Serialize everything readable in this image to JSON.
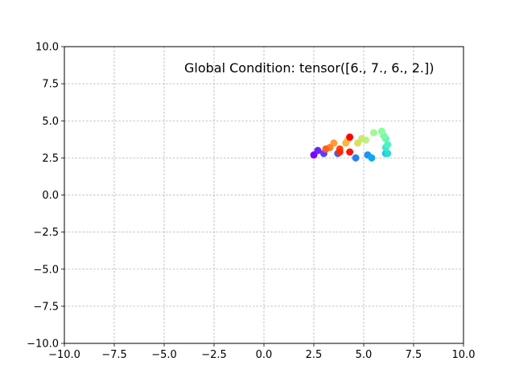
{
  "chart_data": {
    "type": "scatter",
    "title": "",
    "xlabel": "",
    "ylabel": "",
    "xlim": [
      -10,
      10
    ],
    "ylim": [
      -10,
      10
    ],
    "grid": true,
    "x_ticks": [
      "−10.0",
      "−7.5",
      "−5.0",
      "−2.5",
      "0.0",
      "2.5",
      "5.0",
      "7.5",
      "10.0"
    ],
    "y_ticks": [
      "−10.0",
      "−7.5",
      "−5.0",
      "−2.5",
      "0.0",
      "2.5",
      "5.0",
      "7.5",
      "10.0"
    ],
    "annotation": "Global Condition: tensor([6., 7., 6., 2.])",
    "colormap": "rainbow",
    "points": [
      {
        "x": 2.5,
        "y": 2.7,
        "color": "#7f00ff"
      },
      {
        "x": 2.7,
        "y": 3.0,
        "color": "#6a22fe"
      },
      {
        "x": 3.0,
        "y": 2.8,
        "color": "#5641fd"
      },
      {
        "x": 3.7,
        "y": 2.8,
        "color": "#3f5ffa"
      },
      {
        "x": 4.6,
        "y": 2.5,
        "color": "#2a7ef5"
      },
      {
        "x": 5.2,
        "y": 2.7,
        "color": "#1996f3"
      },
      {
        "x": 5.4,
        "y": 2.5,
        "color": "#0ca9ee"
      },
      {
        "x": 6.1,
        "y": 2.8,
        "color": "#1cc6e2"
      },
      {
        "x": 6.2,
        "y": 2.8,
        "color": "#2cdcd8"
      },
      {
        "x": 6.1,
        "y": 3.2,
        "color": "#3ee8cd"
      },
      {
        "x": 6.2,
        "y": 3.4,
        "color": "#50f3c2"
      },
      {
        "x": 6.1,
        "y": 3.8,
        "color": "#62f8b6"
      },
      {
        "x": 6.0,
        "y": 4.0,
        "color": "#76fca9"
      },
      {
        "x": 5.9,
        "y": 4.3,
        "color": "#8afe9c"
      },
      {
        "x": 5.5,
        "y": 4.2,
        "color": "#a0fb8e"
      },
      {
        "x": 5.1,
        "y": 3.7,
        "color": "#b4f580"
      },
      {
        "x": 4.9,
        "y": 3.8,
        "color": "#c8ea72"
      },
      {
        "x": 4.7,
        "y": 3.5,
        "color": "#dade63"
      },
      {
        "x": 4.2,
        "y": 3.7,
        "color": "#eacd55"
      },
      {
        "x": 4.1,
        "y": 3.5,
        "color": "#f8b846"
      },
      {
        "x": 3.5,
        "y": 3.5,
        "color": "#ff9c38"
      },
      {
        "x": 3.3,
        "y": 3.2,
        "color": "#ff8029"
      },
      {
        "x": 3.1,
        "y": 3.1,
        "color": "#ff611b"
      },
      {
        "x": 3.8,
        "y": 3.1,
        "color": "#ff420d"
      },
      {
        "x": 3.8,
        "y": 2.9,
        "color": "#ff2a06"
      },
      {
        "x": 4.3,
        "y": 2.9,
        "color": "#ff1403"
      },
      {
        "x": 4.3,
        "y": 3.9,
        "color": "#ff0000"
      }
    ]
  }
}
